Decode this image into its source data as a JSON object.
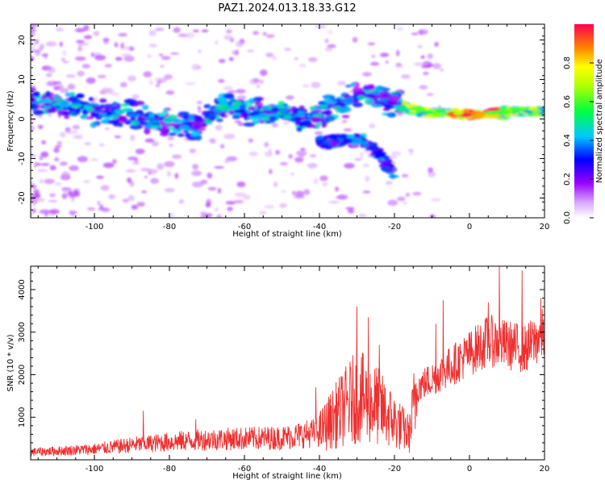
{
  "figure": {
    "title": "PAZ1.2024.013.18.33.G12"
  },
  "chart_data": [
    {
      "type": "heatmap",
      "title": "PAZ1.2024.013.18.33.G12",
      "xlabel": "Height of straight line (km)",
      "ylabel": "Frequency (Hz)",
      "xlim": [
        -117,
        20
      ],
      "ylim": [
        -25,
        24
      ],
      "x_ticks": [
        -100,
        -80,
        -60,
        -40,
        -20,
        0,
        20
      ],
      "x_tick_labels": [
        "-100",
        "-80",
        "-60",
        "-40",
        "-20",
        "0",
        "20"
      ],
      "y_ticks": [
        -20,
        -10,
        0,
        10,
        20
      ],
      "y_tick_labels": [
        "-20",
        "-10",
        "0",
        "10",
        "20"
      ],
      "colormap": [
        "#ffffff",
        "#a000ff",
        "#0000ff",
        "#00ffff",
        "#00ff00",
        "#ffff00",
        "#ff8000",
        "#ff0050"
      ],
      "colorbar": {
        "label": "Normalized spectral amplitude",
        "range": [
          0,
          1
        ],
        "ticks": [
          0.0,
          0.2,
          0.4,
          0.6,
          0.8
        ],
        "tick_labels": [
          "0.0",
          "0.2",
          "0.4",
          "0.6",
          "0.8"
        ]
      },
      "ridge_track": {
        "description_free": true,
        "points": [
          {
            "x": -113,
            "y": 4
          },
          {
            "x": -100,
            "y": 2
          },
          {
            "x": -90,
            "y": 1
          },
          {
            "x": -80,
            "y": -1
          },
          {
            "x": -72,
            "y": -2
          },
          {
            "x": -65,
            "y": 4
          },
          {
            "x": -58,
            "y": 2
          },
          {
            "x": -50,
            "y": 1
          },
          {
            "x": -42,
            "y": 0
          },
          {
            "x": -35,
            "y": 4
          },
          {
            "x": -28,
            "y": 6
          },
          {
            "x": -20,
            "y": 4
          },
          {
            "x": -15,
            "y": 2
          },
          {
            "x": -5,
            "y": 1.5
          },
          {
            "x": 3,
            "y": 1
          },
          {
            "x": 12,
            "y": 2
          },
          {
            "x": 20,
            "y": 2
          }
        ],
        "secondary_points": [
          {
            "x": -40,
            "y": -6
          },
          {
            "x": -30,
            "y": -5
          },
          {
            "x": -25,
            "y": -8
          },
          {
            "x": -20,
            "y": -14
          }
        ]
      }
    },
    {
      "type": "line",
      "xlabel": "Height of straight line (km)",
      "ylabel": "SNR (10 * v/v)",
      "xlim": [
        -117,
        20
      ],
      "ylim": [
        0,
        4550
      ],
      "x_ticks": [
        -100,
        -80,
        -60,
        -40,
        -20,
        0,
        20
      ],
      "x_tick_labels": [
        "-100",
        "-80",
        "-60",
        "-40",
        "-20",
        "0",
        "20"
      ],
      "y_ticks": [
        1000,
        2000,
        3000,
        4000
      ],
      "y_tick_labels": [
        "1000",
        "2000",
        "3000",
        "4000"
      ],
      "line_color": "#f03030",
      "trend": {
        "x": [
          -117,
          -100,
          -90,
          -80,
          -70,
          -60,
          -50,
          -40,
          -35,
          -30,
          -25,
          -20,
          -16,
          -14,
          -10,
          -5,
          0,
          5,
          10,
          15,
          20
        ],
        "y": [
          180,
          250,
          350,
          420,
          480,
          500,
          520,
          650,
          1100,
          1500,
          1300,
          900,
          600,
          1700,
          1900,
          2200,
          2500,
          2800,
          2700,
          2600,
          3000
        ]
      },
      "spikes": [
        {
          "x": -87,
          "y": 1150
        },
        {
          "x": -73,
          "y": 950
        },
        {
          "x": -41,
          "y": 1700
        },
        {
          "x": -30,
          "y": 3600
        },
        {
          "x": -27,
          "y": 3350
        },
        {
          "x": -24,
          "y": 2700
        },
        {
          "x": -9,
          "y": 3200
        },
        {
          "x": -7,
          "y": 3750
        },
        {
          "x": 5,
          "y": 3700
        },
        {
          "x": 8,
          "y": 4550
        },
        {
          "x": 14,
          "y": 4450
        },
        {
          "x": 19,
          "y": 3800
        }
      ]
    }
  ]
}
